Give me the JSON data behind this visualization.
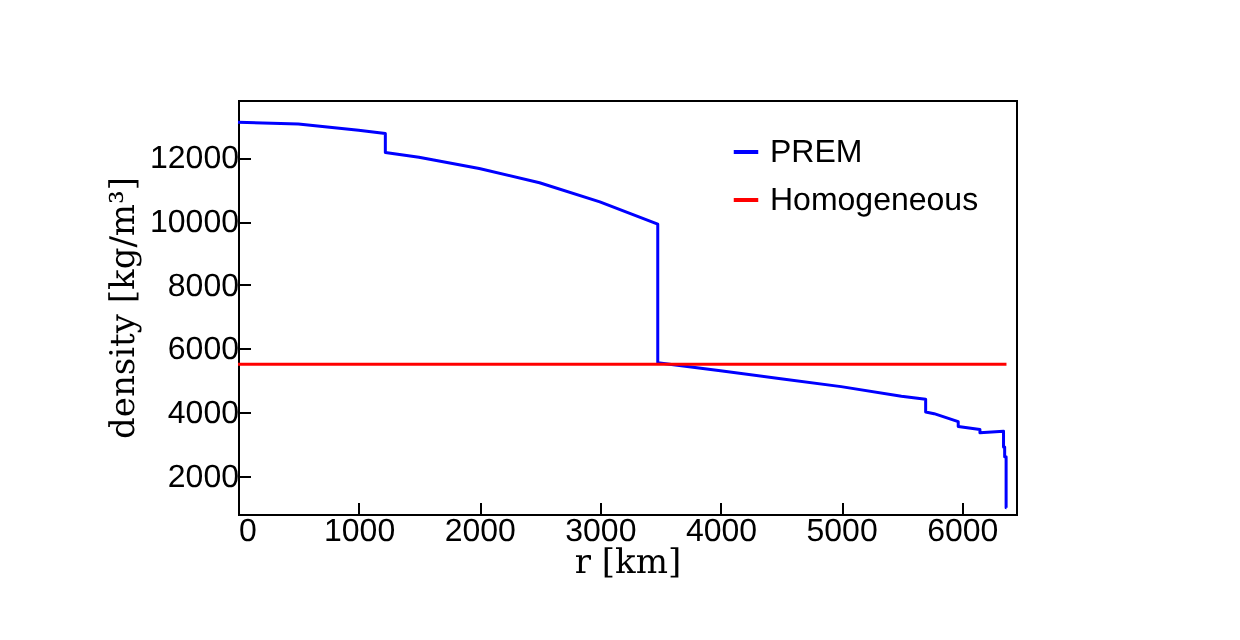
{
  "chart_data": {
    "type": "line",
    "xlabel": "r  [km]",
    "ylabel": "density  [kg/m³]",
    "xlim": [
      0,
      6450
    ],
    "ylim": [
      800,
      13800
    ],
    "xticks": [
      0,
      1000,
      2000,
      3000,
      4000,
      5000,
      6000
    ],
    "yticks": [
      2000,
      4000,
      6000,
      8000,
      10000,
      12000
    ],
    "grid": false,
    "legend": "top right",
    "line_style": "solid",
    "marker": "none",
    "series": [
      {
        "name": "PREM",
        "color": "#0000ff",
        "x": [
          0,
          500,
          1000,
          1221.5,
          1221.5,
          1500,
          2000,
          2500,
          3000,
          3480,
          3480,
          4000,
          4500,
          5000,
          5500,
          5701,
          5701,
          5771,
          5771,
          5971,
          5971,
          6151,
          6151,
          6346.6,
          6346.6,
          6356,
          6356,
          6368,
          6368,
          6371
        ],
        "values": [
          13100,
          13050,
          12850,
          12750,
          12150,
          12000,
          11650,
          11200,
          10600,
          9900,
          5550,
          5300,
          5050,
          4800,
          4500,
          4400,
          4000,
          3950,
          3950,
          3700,
          3550,
          3450,
          3350,
          3400,
          2900,
          2900,
          2600,
          2600,
          1000,
          1000
        ]
      },
      {
        "name": "Homogeneous",
        "color": "#ff0000",
        "x": [
          0,
          6371
        ],
        "values": [
          5500,
          5500
        ]
      }
    ]
  }
}
